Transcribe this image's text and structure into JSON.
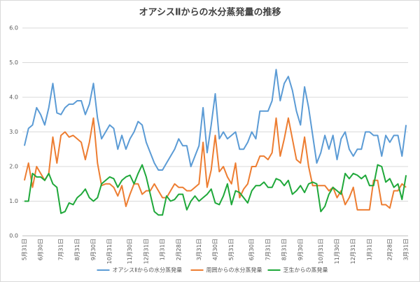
{
  "chart_data": {
    "type": "line",
    "title": "オアシスⅡからの水分蒸発量の推移",
    "categories": [
      "5月31日",
      null,
      null,
      null,
      "6月30日",
      null,
      null,
      null,
      null,
      "7月31日",
      null,
      null,
      null,
      "8月31日",
      null,
      null,
      null,
      "9月30日",
      null,
      null,
      null,
      "10月31日",
      null,
      null,
      null,
      null,
      "11月30日",
      null,
      null,
      null,
      "12月31日",
      null,
      null,
      null,
      "1月31日",
      null,
      null,
      null,
      "2月28日",
      null,
      null,
      null,
      null,
      "3月31日",
      null,
      null,
      null,
      "4月30日",
      null,
      null,
      null,
      "5月31日",
      null,
      null,
      null,
      null,
      "6月30日",
      null,
      null,
      null,
      "7月31日",
      null,
      null,
      null,
      "8月31日",
      null,
      null,
      null,
      "9月30日",
      null,
      null,
      null,
      null,
      "10月31日",
      null,
      null,
      null,
      "11月30日",
      null,
      null,
      null,
      "12月31日",
      null,
      null,
      null,
      "1月31日",
      null,
      null,
      null,
      null,
      "2月28日",
      null,
      null,
      null,
      "3月31日"
    ],
    "series": [
      {
        "name": "オアシスⅡからの水分蒸発量",
        "color": "#5b9bd5",
        "values": [
          2.6,
          3.1,
          3.2,
          3.7,
          3.5,
          3.2,
          3.7,
          4.4,
          3.55,
          3.5,
          3.7,
          3.8,
          3.8,
          3.9,
          3.9,
          3.5,
          3.8,
          4.4,
          3.4,
          2.8,
          3.0,
          3.2,
          3.1,
          2.5,
          2.9,
          2.5,
          2.8,
          3.0,
          3.3,
          3.2,
          2.7,
          2.4,
          2.1,
          1.9,
          1.9,
          2.1,
          2.3,
          2.5,
          2.8,
          2.6,
          2.6,
          2.0,
          2.3,
          2.6,
          3.7,
          2.4,
          3.2,
          4.1,
          2.8,
          3.0,
          2.8,
          2.9,
          3.0,
          2.5,
          2.5,
          2.7,
          3.0,
          2.8,
          3.6,
          3.6,
          3.6,
          3.9,
          4.8,
          3.9,
          4.4,
          4.6,
          4.2,
          3.6,
          3.2,
          4.3,
          3.7,
          2.9,
          2.1,
          2.4,
          2.9,
          2.5,
          2.9,
          2.2,
          2.8,
          3.0,
          2.5,
          2.3,
          2.5,
          2.5,
          3.0,
          3.0,
          2.9,
          2.9,
          2.3,
          2.9,
          2.7,
          2.9,
          2.9,
          2.3,
          3.2
        ]
      },
      {
        "name": "周囲からの水分蒸発量",
        "color": "#ed7d31",
        "values": [
          1.6,
          2.1,
          1.4,
          2.0,
          1.8,
          1.6,
          1.8,
          2.85,
          2.1,
          2.9,
          3.0,
          2.85,
          2.9,
          2.8,
          2.7,
          2.2,
          2.7,
          3.4,
          2.1,
          1.45,
          1.5,
          1.5,
          1.4,
          1.15,
          1.45,
          0.85,
          1.2,
          1.5,
          1.5,
          1.2,
          1.3,
          1.3,
          1.5,
          1.3,
          1.1,
          1.1,
          1.3,
          1.5,
          1.4,
          1.4,
          1.3,
          1.3,
          1.4,
          1.5,
          2.7,
          1.4,
          1.9,
          2.9,
          1.85,
          2.0,
          1.7,
          1.5,
          2.1,
          1.1,
          1.35,
          1.5,
          2.0,
          2.0,
          2.3,
          2.3,
          2.2,
          2.4,
          3.4,
          2.3,
          2.8,
          3.4,
          2.8,
          2.2,
          2.1,
          2.85,
          2.0,
          1.45,
          1.45,
          1.45,
          1.45,
          1.3,
          1.4,
          1.1,
          1.3,
          0.9,
          1.1,
          1.4,
          0.75,
          0.75,
          0.75,
          0.75,
          1.6,
          1.6,
          0.9,
          0.9,
          0.8,
          1.3,
          1.3,
          1.5,
          1.4
        ]
      },
      {
        "name": "芝生からの蒸発量",
        "color": "#1fa83a",
        "values": [
          1.0,
          1.0,
          1.8,
          1.7,
          1.7,
          1.6,
          1.8,
          1.5,
          1.4,
          0.65,
          0.7,
          0.95,
          0.9,
          1.1,
          1.2,
          1.35,
          1.1,
          1.0,
          1.1,
          1.5,
          1.6,
          1.7,
          1.65,
          1.4,
          1.6,
          1.7,
          1.75,
          1.5,
          1.8,
          2.05,
          1.7,
          1.2,
          0.7,
          0.6,
          0.6,
          1.15,
          1.0,
          1.05,
          1.2,
          1.2,
          0.75,
          1.0,
          1.15,
          1.0,
          1.1,
          1.2,
          1.35,
          0.95,
          0.9,
          1.15,
          1.5,
          0.9,
          1.3,
          1.25,
          1.1,
          0.95,
          1.3,
          1.45,
          1.45,
          1.55,
          1.4,
          1.4,
          1.65,
          1.6,
          1.45,
          1.6,
          1.2,
          1.3,
          1.45,
          1.25,
          1.5,
          1.55,
          1.5,
          0.7,
          0.85,
          1.2,
          1.4,
          1.3,
          1.2,
          1.8,
          1.65,
          1.8,
          1.75,
          1.65,
          1.75,
          1.45,
          1.45,
          2.05,
          2.0,
          1.55,
          1.65,
          1.4,
          1.5,
          1.05,
          1.75
        ]
      }
    ],
    "ylim": [
      0,
      6
    ],
    "yticks": [
      {
        "value": 0,
        "label": "0.0"
      },
      {
        "value": 1,
        "label": "1.0"
      },
      {
        "value": 2,
        "label": "2.0"
      },
      {
        "value": 3,
        "label": "3.0"
      },
      {
        "value": 4,
        "label": "4.0"
      },
      {
        "value": 5,
        "label": "5.0"
      },
      {
        "value": 6,
        "label": "6.0"
      }
    ],
    "grid": true,
    "legend": "bottom"
  }
}
